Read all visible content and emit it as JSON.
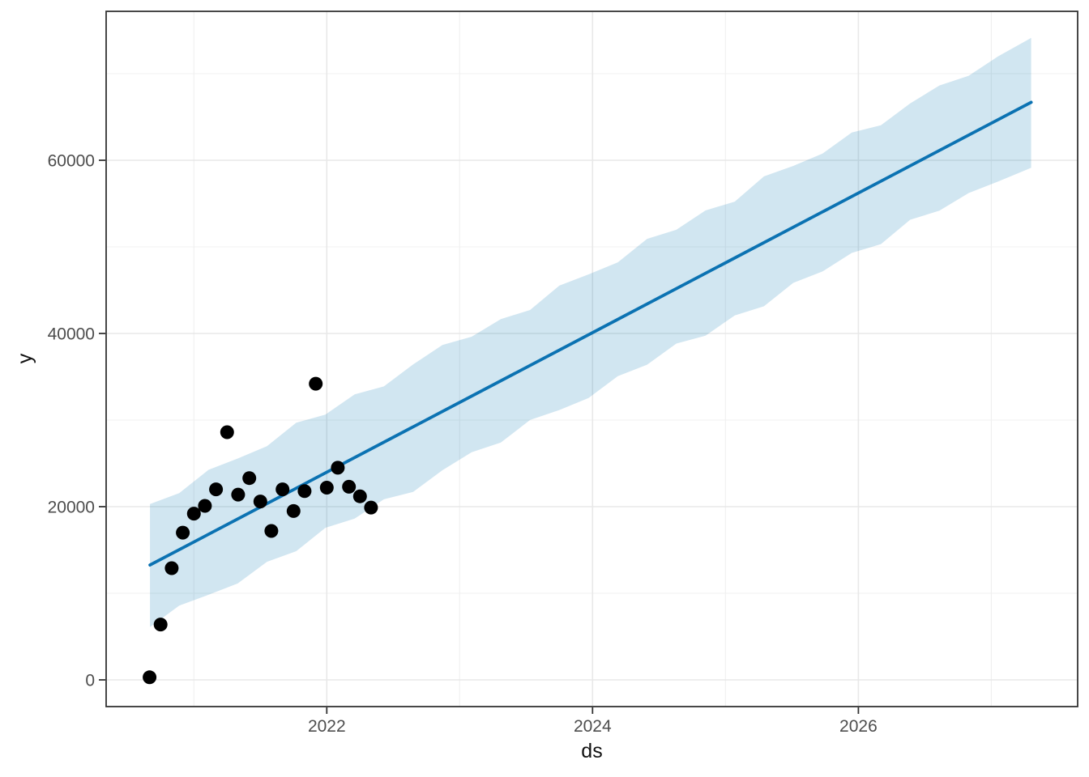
{
  "chart_data": {
    "type": "line",
    "title": "",
    "xlabel": "ds",
    "ylabel": "y",
    "legend": "none",
    "grid": "on",
    "axes": {
      "x": {
        "lim": [
          2020.34,
          2027.65
        ],
        "major_ticks": [
          2022,
          2024,
          2026
        ],
        "major_tick_labels": [
          "2022",
          "2024",
          "2026"
        ],
        "minor_ticks": [
          2021,
          2023,
          2025,
          2027
        ]
      },
      "y": {
        "lim": [
          -3080,
          77200
        ],
        "major_ticks": [
          0,
          20000,
          40000,
          60000
        ],
        "major_tick_labels": [
          "0",
          "20000",
          "40000",
          "60000"
        ],
        "minor_ticks": [
          10000,
          30000,
          50000,
          70000
        ]
      }
    },
    "series": [
      {
        "name": "uncertainty-interval",
        "type": "band",
        "color": "#0072B2",
        "opacity": 0.18,
        "x": [
          2020.67,
          2020.89,
          2021.11,
          2021.33,
          2021.55,
          2021.77,
          2021.99,
          2022.21,
          2022.43,
          2022.65,
          2022.87,
          2023.09,
          2023.31,
          2023.53,
          2023.75,
          2023.97,
          2024.19,
          2024.41,
          2024.63,
          2024.85,
          2025.07,
          2025.29,
          2025.51,
          2025.73,
          2025.95,
          2026.17,
          2026.39,
          2026.61,
          2026.83,
          2027.05,
          2027.3
        ],
        "upper": [
          20300,
          21578,
          24256,
          25564,
          26982,
          29691,
          30639,
          32977,
          33895,
          36433,
          38681,
          39629,
          41667,
          42716,
          45524,
          46822,
          48220,
          50928,
          51976,
          54214,
          55232,
          58141,
          59349,
          60767,
          63205,
          64053,
          66561,
          68639,
          69757,
          71996,
          74130
        ],
        "lower": [
          6100,
          8578,
          9826,
          11134,
          13642,
          14861,
          17569,
          18617,
          20855,
          21703,
          24211,
          26289,
          27407,
          30016,
          31164,
          32542,
          35080,
          36398,
          38836,
          39754,
          42092,
          43141,
          45849,
          47167,
          49305,
          50323,
          53131,
          54179,
          56217,
          57536,
          59130
        ]
      },
      {
        "name": "trend-forecast",
        "type": "line",
        "color": "#0b72b2",
        "width": 3.8,
        "x": [
          2020.67,
          2027.3
        ],
        "y": [
          13270,
          66700
        ]
      },
      {
        "name": "observed-points",
        "type": "scatter",
        "color": "#000000",
        "point_radius": 8.5,
        "x": [
          2020.667,
          2020.75,
          2020.833,
          2020.917,
          2021.0,
          2021.083,
          2021.167,
          2021.25,
          2021.333,
          2021.417,
          2021.5,
          2021.583,
          2021.667,
          2021.75,
          2021.833,
          2021.917,
          2022.0,
          2022.083,
          2022.167,
          2022.25,
          2022.333
        ],
        "y": [
          300,
          6400,
          12900,
          17000,
          19200,
          20100,
          22000,
          28600,
          21400,
          23300,
          20600,
          17200,
          22000,
          19500,
          21800,
          34200,
          22200,
          24500,
          22300,
          21200,
          19900
        ]
      }
    ],
    "style": {
      "background": "#ffffff",
      "panel_background": "#ffffff",
      "panel_border_color": "#333333",
      "grid_major_color": "#e8e8e8",
      "grid_minor_color": "#f0f0f0",
      "tick_mark_color": "#333333",
      "tick_label_color": "#4d4d4d",
      "axis_title_color": "#111111"
    }
  }
}
